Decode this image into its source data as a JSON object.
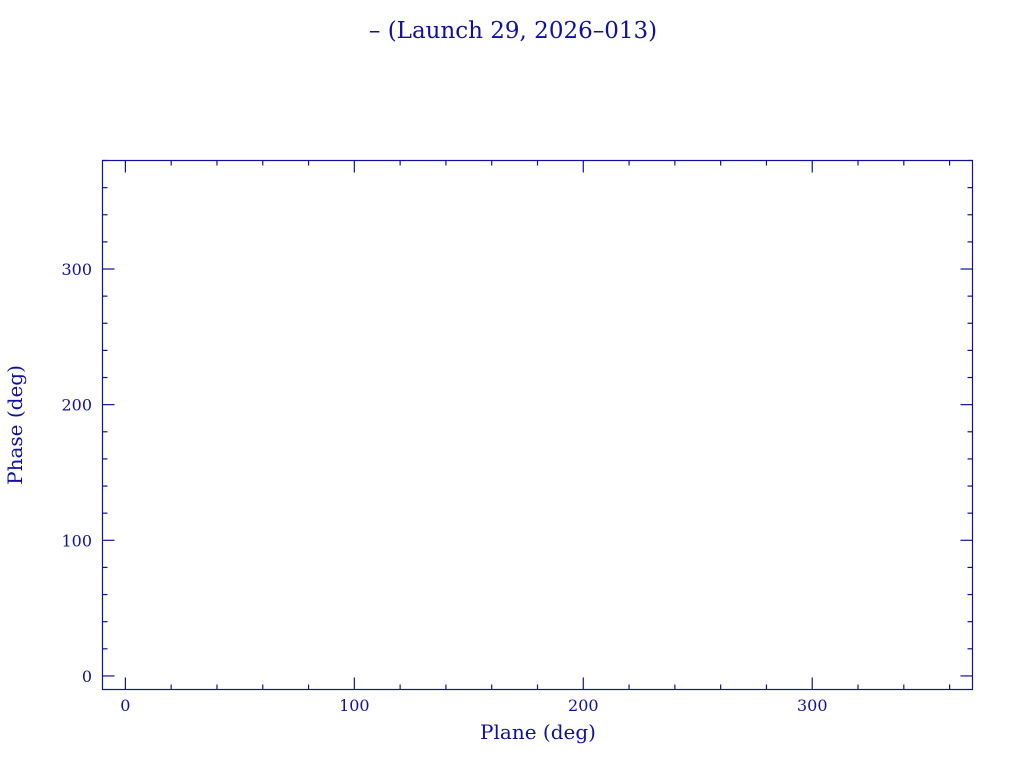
{
  "chart_data": {
    "type": "scatter",
    "title": "– (Launch 29, 2026–013)",
    "xlabel": "Plane (deg)",
    "ylabel": "Phase (deg)",
    "xlim": [
      -10,
      370
    ],
    "ylim": [
      -10,
      380
    ],
    "xticks": [
      0,
      100,
      200,
      300
    ],
    "yticks": [
      0,
      100,
      200,
      300
    ],
    "minor_tick_step": 20,
    "grid": false,
    "series": [],
    "color": "#1010a0"
  }
}
